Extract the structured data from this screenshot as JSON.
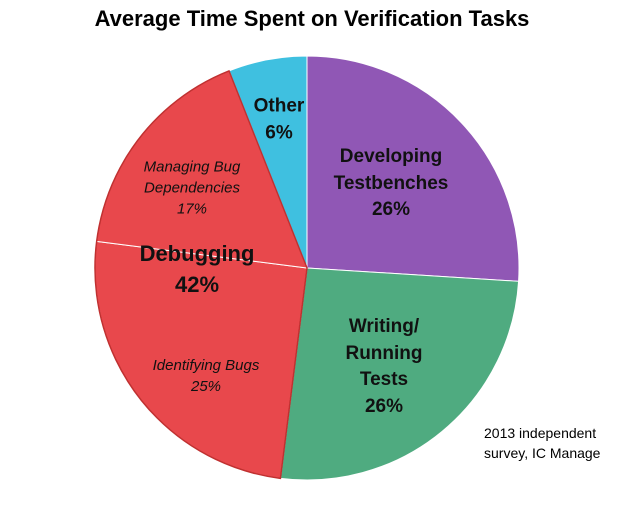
{
  "chart_data": {
    "type": "pie",
    "title": "Average Time Spent on Verification Tasks",
    "categories": [
      "Developing Testbenches",
      "Writing/ Running Tests",
      "Identifying Bugs",
      "Managing Bug Dependencies",
      "Other"
    ],
    "values": [
      26,
      26,
      25,
      17,
      6
    ],
    "value_labels": [
      "26%",
      "26%",
      "25%",
      "17%",
      "6%"
    ],
    "colors": [
      "#9057b5",
      "#4fab80",
      "#e8484c",
      "#e8484c",
      "#3fc0e0"
    ],
    "group": {
      "label": "Debugging",
      "value": 42,
      "value_label": "42%"
    },
    "note": "2013 independent survey, IC Manage"
  }
}
